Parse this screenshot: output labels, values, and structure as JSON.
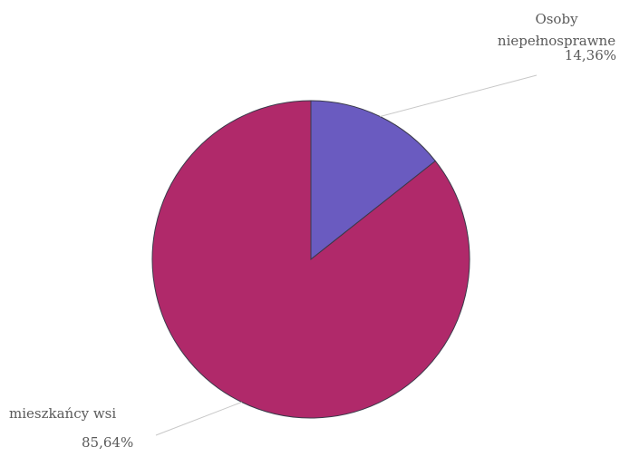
{
  "chart_data": {
    "type": "pie",
    "title": "",
    "legend": "none",
    "slices": [
      {
        "label_lines": [
          "Osoby",
          "niepełnosprawne"
        ],
        "value_label": "14,36%",
        "value": 14.36,
        "color": "#6a5bc0"
      },
      {
        "label_lines": [
          "mieszkańcy wsi"
        ],
        "value_label": "85,64%",
        "value": 85.64,
        "color": "#b0296a"
      }
    ]
  }
}
